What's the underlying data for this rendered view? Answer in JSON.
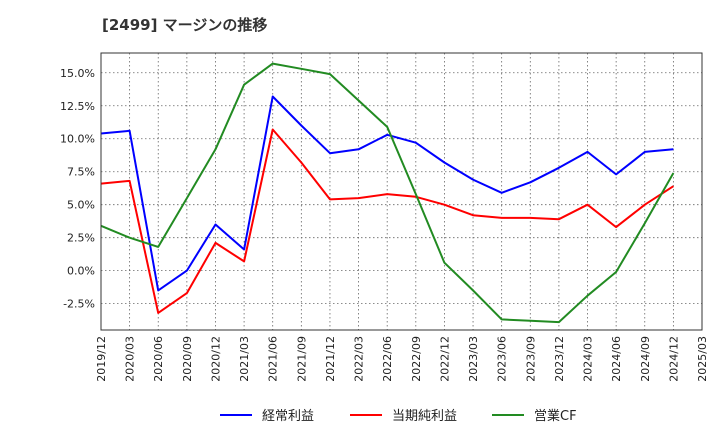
{
  "chart_data": {
    "type": "line",
    "title": "[2499]  マージンの推移",
    "xlabel": "",
    "ylabel": "",
    "ylim": [
      -4.5,
      16.5
    ],
    "grid": true,
    "legend_position": "bottom",
    "x": [
      "2019/12",
      "2020/03",
      "2020/06",
      "2020/09",
      "2020/12",
      "2021/03",
      "2021/06",
      "2021/09",
      "2021/12",
      "2022/03",
      "2022/06",
      "2022/09",
      "2022/12",
      "2023/03",
      "2023/06",
      "2023/09",
      "2023/12",
      "2024/03",
      "2024/06",
      "2024/09",
      "2024/12",
      "2025/03"
    ],
    "y_ticks": [
      "15.0%",
      "12.5%",
      "10.0%",
      "7.5%",
      "5.0%",
      "2.5%",
      "0.0%",
      "-2.5%"
    ],
    "y_tick_values": [
      15.0,
      12.5,
      10.0,
      7.5,
      5.0,
      2.5,
      0.0,
      -2.5
    ],
    "series": [
      {
        "name": "経常利益",
        "color": "#0000ff",
        "values": [
          10.4,
          10.6,
          -1.5,
          0.0,
          3.5,
          1.6,
          13.2,
          11.0,
          8.9,
          9.2,
          10.3,
          9.7,
          8.2,
          6.9,
          5.9,
          6.7,
          7.8,
          9.0,
          7.3,
          9.0,
          9.2,
          null
        ]
      },
      {
        "name": "当期純利益",
        "color": "#ff0000",
        "values": [
          6.6,
          6.8,
          -3.2,
          -1.7,
          2.1,
          0.7,
          10.7,
          8.2,
          5.4,
          5.5,
          5.8,
          5.6,
          5.0,
          4.2,
          4.0,
          4.0,
          3.9,
          5.0,
          3.3,
          5.0,
          6.4,
          null
        ]
      },
      {
        "name": "営業CF",
        "color": "#228b22",
        "values": [
          3.4,
          2.5,
          1.8,
          5.5,
          9.2,
          14.1,
          15.7,
          15.3,
          14.9,
          12.9,
          10.9,
          5.8,
          0.6,
          -1.5,
          -3.7,
          -3.8,
          -3.9,
          -1.9,
          -0.1,
          3.6,
          7.4,
          null
        ]
      }
    ]
  }
}
